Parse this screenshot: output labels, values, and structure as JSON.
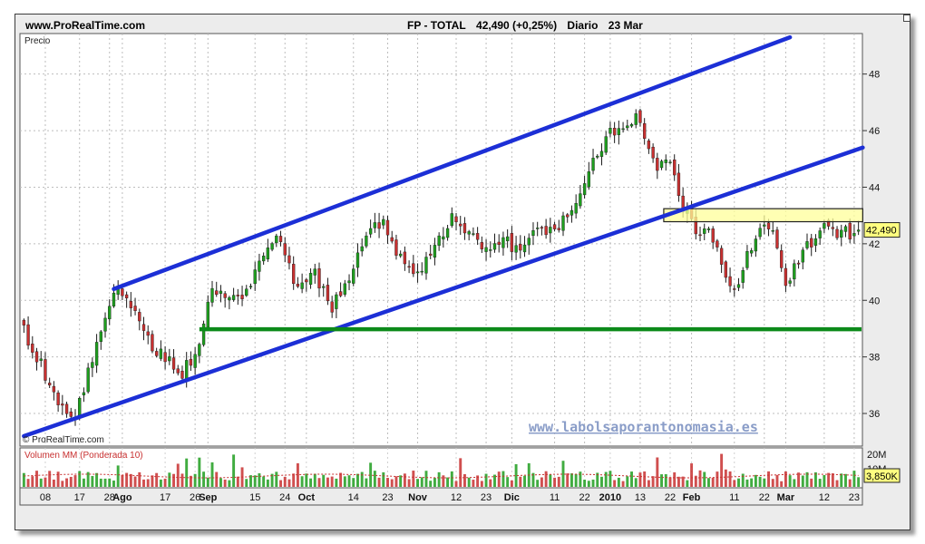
{
  "header": {
    "site": "www.ProRealTime.com",
    "ticker": "FP - TOTAL",
    "last": "42,490 (+0,25%)",
    "period": "Diario",
    "date": "23 Mar"
  },
  "labels": {
    "price_panel": "Precio",
    "volume_panel": "Volumen MM (Ponderada 10)",
    "copyright": "© ProRealTime.com",
    "watermark": "www.labolsaporantonomasia.es",
    "last_price_tag": "42,490",
    "volume_tag": "3,850K"
  },
  "colors": {
    "up": "#1e9e1e",
    "down": "#c83030",
    "channel": "#1c2fd6",
    "support": "#0c8a1a",
    "resistance_fill": "#ffff99",
    "price_tag_fill": "#ffff80",
    "watermark": "#8a9dc8"
  },
  "chart_data": {
    "type": "candlestick",
    "title": "FP - TOTAL  42,490 (+0,25%)  Diario 23 Mar",
    "ylabel": "Precio",
    "ylim": [
      35.2,
      49.4
    ],
    "yticks": [
      36,
      38,
      40,
      42,
      44,
      46,
      48
    ],
    "x_count": 196,
    "xticks": [
      {
        "i": 5,
        "label": "08"
      },
      {
        "i": 13,
        "label": "17"
      },
      {
        "i": 20,
        "label": "28"
      },
      {
        "i": 23,
        "label": "Ago"
      },
      {
        "i": 33,
        "label": "17"
      },
      {
        "i": 40,
        "label": "26"
      },
      {
        "i": 43,
        "label": "Sep"
      },
      {
        "i": 54,
        "label": "15"
      },
      {
        "i": 61,
        "label": "24"
      },
      {
        "i": 66,
        "label": "Oct"
      },
      {
        "i": 77,
        "label": "14"
      },
      {
        "i": 85,
        "label": "23"
      },
      {
        "i": 92,
        "label": "Nov"
      },
      {
        "i": 101,
        "label": "12"
      },
      {
        "i": 108,
        "label": "23"
      },
      {
        "i": 114,
        "label": "Dic"
      },
      {
        "i": 124,
        "label": "11"
      },
      {
        "i": 131,
        "label": "22"
      },
      {
        "i": 137,
        "label": "2010"
      },
      {
        "i": 144,
        "label": "13"
      },
      {
        "i": 151,
        "label": "22"
      },
      {
        "i": 156,
        "label": "Feb"
      },
      {
        "i": 166,
        "label": "11"
      },
      {
        "i": 173,
        "label": "22"
      },
      {
        "i": 178,
        "label": "Mar"
      },
      {
        "i": 187,
        "label": "12"
      },
      {
        "i": 194,
        "label": "23"
      }
    ],
    "last_close": 42.49,
    "change_pct": 0.25,
    "path_anchors": [
      [
        0,
        38.9
      ],
      [
        4,
        37.7
      ],
      [
        8,
        36.2
      ],
      [
        12,
        36.0
      ],
      [
        17,
        38.4
      ],
      [
        22,
        40.6
      ],
      [
        26,
        39.5
      ],
      [
        30,
        38.3
      ],
      [
        34,
        38.0
      ],
      [
        37,
        37.4
      ],
      [
        40,
        38.1
      ],
      [
        44,
        40.3
      ],
      [
        48,
        40.1
      ],
      [
        52,
        40.3
      ],
      [
        56,
        41.7
      ],
      [
        60,
        42.2
      ],
      [
        64,
        40.3
      ],
      [
        68,
        40.9
      ],
      [
        72,
        39.8
      ],
      [
        76,
        40.6
      ],
      [
        80,
        42.3
      ],
      [
        84,
        42.8
      ],
      [
        88,
        41.5
      ],
      [
        92,
        41.0
      ],
      [
        96,
        41.9
      ],
      [
        100,
        42.9
      ],
      [
        104,
        42.3
      ],
      [
        108,
        41.8
      ],
      [
        112,
        42.2
      ],
      [
        116,
        41.6
      ],
      [
        120,
        42.6
      ],
      [
        124,
        42.5
      ],
      [
        128,
        43.2
      ],
      [
        132,
        44.5
      ],
      [
        136,
        45.8
      ],
      [
        140,
        46.2
      ],
      [
        143,
        46.4
      ],
      [
        145,
        45.8
      ],
      [
        148,
        44.8
      ],
      [
        151,
        44.7
      ],
      [
        154,
        43.3
      ],
      [
        157,
        42.4
      ],
      [
        160,
        42.3
      ],
      [
        163,
        41.4
      ],
      [
        166,
        40.3
      ],
      [
        169,
        41.6
      ],
      [
        172,
        42.4
      ],
      [
        175,
        42.6
      ],
      [
        178,
        40.5
      ],
      [
        181,
        41.5
      ],
      [
        184,
        42.0
      ],
      [
        187,
        42.7
      ],
      [
        190,
        42.3
      ],
      [
        193,
        42.4
      ],
      [
        195,
        42.49
      ]
    ],
    "overlays": {
      "channel_upper": {
        "from": [
          21,
          40.4
        ],
        "to": [
          179,
          49.3
        ]
      },
      "channel_lower": {
        "from": [
          0,
          35.2
        ],
        "to": [
          196,
          45.4
        ]
      },
      "support": {
        "from": [
          41,
          38.98
        ],
        "to": [
          196,
          38.98
        ]
      },
      "resistance_zone": {
        "from_i": 150,
        "to_i": 196,
        "low": 42.78,
        "high": 43.24
      }
    },
    "volume": {
      "label": "Volumen MM (Ponderada 10)",
      "yticks": [
        "20M",
        "10M"
      ],
      "last": "3,850K"
    }
  }
}
